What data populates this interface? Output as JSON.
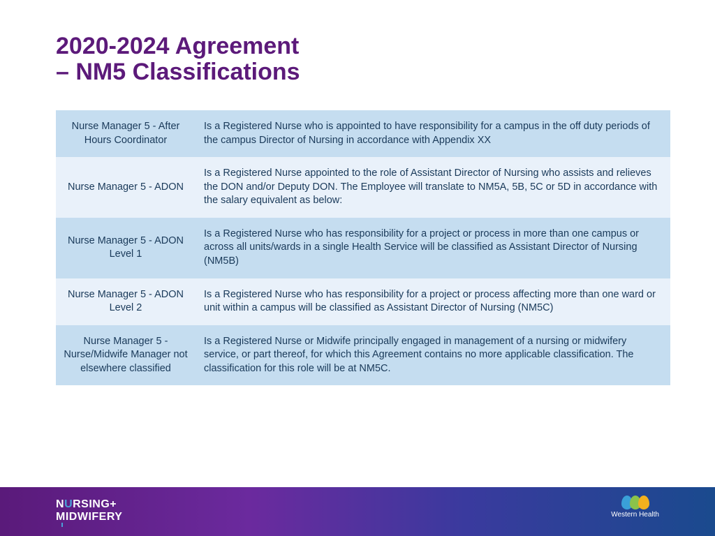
{
  "title": {
    "line1": "2020-2024 Agreement",
    "line2": "– NM5 Classifications",
    "color": "#5c1a7a",
    "fontsize": 34
  },
  "table": {
    "text_color": "#1a3a5a",
    "row_bg_even": "#c5ddf0",
    "row_bg_odd": "#e9f1fa",
    "rows": [
      {
        "role": "Nurse Manager 5 - After Hours  Coordinator",
        "desc": "Is a Registered Nurse who is appointed to have responsibility for a campus in the off duty periods of the campus Director of Nursing in accordance with Appendix XX"
      },
      {
        "role": "Nurse Manager 5 - ADON",
        "desc": "Is a Registered Nurse appointed to the role of Assistant Director of Nursing who assists and relieves the DON and/or Deputy DON. The Employee will translate to NM5A, 5B, 5C or 5D in accordance with the salary equivalent as below:"
      },
      {
        "role": "Nurse Manager 5 - ADON Level 1",
        "desc": "Is a Registered Nurse who has responsibility for a project or process in more than one campus or across all units/wards in a single Health Service will be classified as Assistant Director of Nursing (NM5B)"
      },
      {
        "role": "Nurse Manager 5 - ADON Level 2",
        "desc": "Is a Registered Nurse who has responsibility for a project or process affecting more than one ward or unit within a campus will be classified as Assistant Director of Nursing (NM5C)"
      },
      {
        "role": "Nurse Manager 5 - Nurse/Midwife Manager not elsewhere classified",
        "desc": "Is a Registered Nurse or Midwife principally engaged in management of a nursing or midwifery service, or part thereof, for which this Agreement contains no more applicable classification. The classification for this role will be at NM5C."
      }
    ]
  },
  "footer": {
    "brand_line1_pre": "N",
    "brand_line1_u": "U",
    "brand_line1_post": "RSING+",
    "brand_line2_pre": "M",
    "brand_line2_bar": "I",
    "brand_line2_post": "DWIFERY",
    "right_text": "Western Health",
    "petal_colors": [
      "#3aa0d8",
      "#8bc34a",
      "#f2b01e"
    ]
  }
}
